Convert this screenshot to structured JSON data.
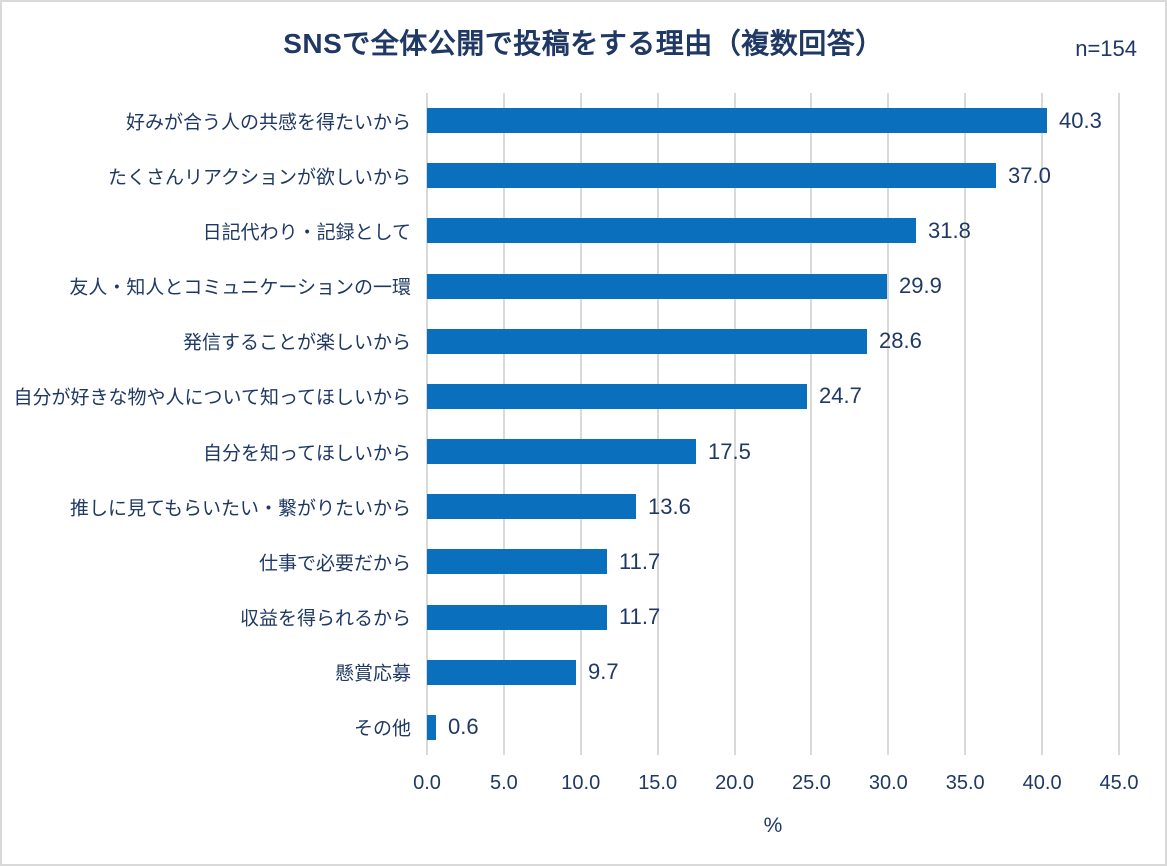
{
  "chart_data": {
    "type": "bar",
    "orientation": "horizontal",
    "title": "SNSで全体公開で投稿をする理由（複数回答）",
    "sample_label": "n=154",
    "categories": [
      "好みが合う人の共感を得たいから",
      "たくさんリアクションが欲しいから",
      "日記代わり・記録として",
      "友人・知人とコミュニケーションの一環",
      "発信することが楽しいから",
      "自分が好きな物や人について知ってほしいから",
      "自分を知ってほしいから",
      "推しに見てもらいたい・繋がりたいから",
      "仕事で必要だから",
      "収益を得られるから",
      "懸賞応募",
      "その他"
    ],
    "values": [
      40.3,
      37.0,
      31.8,
      29.9,
      28.6,
      24.7,
      17.5,
      13.6,
      11.7,
      11.7,
      9.7,
      0.6
    ],
    "value_labels": [
      "40.3",
      "37.0",
      "31.8",
      "29.9",
      "28.6",
      "24.7",
      "17.5",
      "13.6",
      "11.7",
      "11.7",
      "9.7",
      "0.6"
    ],
    "xlabel": "%",
    "xlim": [
      0,
      45
    ],
    "xticks": [
      "0.0",
      "5.0",
      "10.0",
      "15.0",
      "20.0",
      "25.0",
      "30.0",
      "35.0",
      "40.0",
      "45.0"
    ],
    "grid": true,
    "legend": "none",
    "colors": {
      "bar": "#0a70be",
      "text": "#1f3864",
      "gridline": "#d9d9d9",
      "border": "#d9d9d9"
    }
  }
}
